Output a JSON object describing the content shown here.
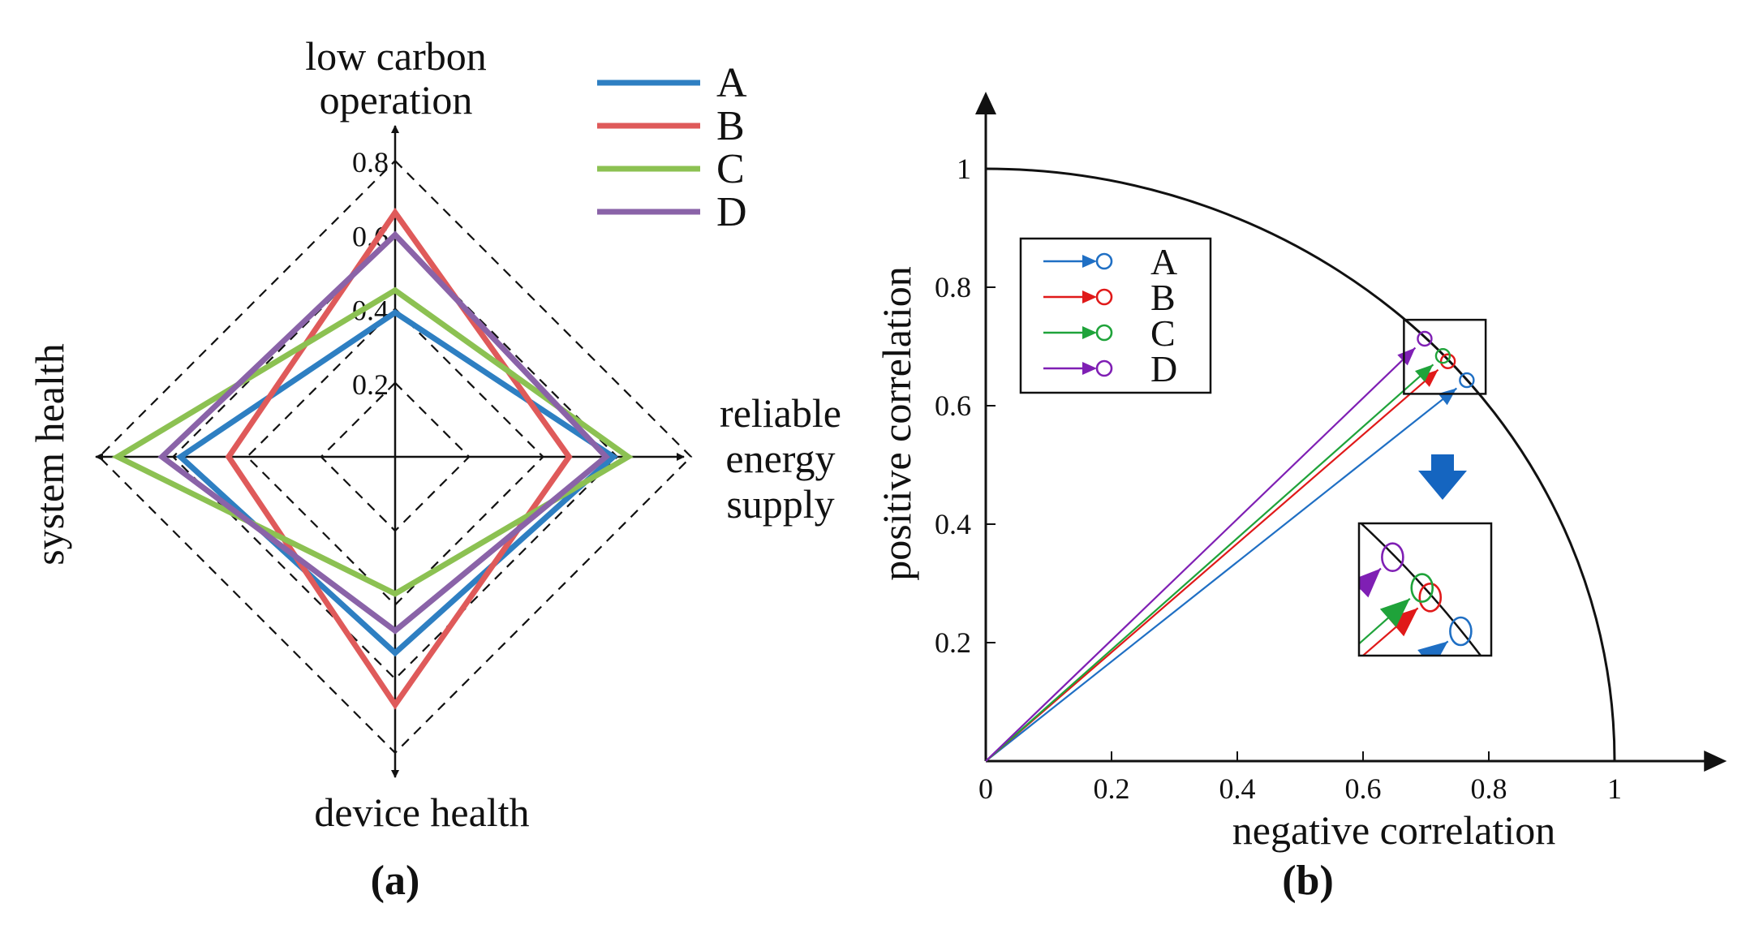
{
  "chart_data": [
    {
      "type": "radar",
      "caption": "(a)",
      "axes": [
        "low carbon operation",
        "reliable energy supply",
        "device health",
        "system health"
      ],
      "axis_label_lines": {
        "top": [
          "low carbon",
          "operation"
        ],
        "right": [
          "reliable",
          "energy",
          "supply"
        ],
        "bottom": [
          "device health"
        ],
        "left": [
          "system health"
        ]
      },
      "rings": [
        0.2,
        0.4,
        0.6,
        0.8
      ],
      "ring_labels": [
        "0.2",
        "0.4",
        "0.6",
        "0.8"
      ],
      "series": [
        {
          "name": "A",
          "color": "#2e7fc2",
          "values": [
            0.39,
            0.59,
            0.53,
            0.58
          ]
        },
        {
          "name": "B",
          "color": "#df5a5a",
          "values": [
            0.66,
            0.47,
            0.67,
            0.45
          ]
        },
        {
          "name": "C",
          "color": "#8cc152",
          "values": [
            0.45,
            0.63,
            0.37,
            0.75
          ]
        },
        {
          "name": "D",
          "color": "#8a63a8",
          "values": [
            0.6,
            0.57,
            0.47,
            0.63
          ]
        }
      ]
    },
    {
      "type": "vector",
      "caption": "(b)",
      "xlabel": "negative correlation",
      "ylabel": "positive correlation",
      "x_ticks": [
        "0",
        "0.2",
        "0.4",
        "0.6",
        "0.8",
        "1"
      ],
      "x_tick_values": [
        0,
        0.2,
        0.4,
        0.6,
        0.8,
        1
      ],
      "y_ticks": [
        "0.2",
        "0.4",
        "0.6",
        "0.8",
        "1"
      ],
      "y_tick_values": [
        0.2,
        0.4,
        0.6,
        0.8,
        1
      ],
      "xlim": [
        0,
        1.15
      ],
      "ylim": [
        0,
        1.1
      ],
      "unit_arc": true,
      "zoom_box": {
        "x": [
          0.665,
          0.795
        ],
        "y": [
          0.62,
          0.745
        ]
      },
      "series": [
        {
          "name": "A",
          "color": "#1f6fc4",
          "x": 0.765,
          "y": 0.643
        },
        {
          "name": "B",
          "color": "#e01919",
          "x": 0.735,
          "y": 0.675
        },
        {
          "name": "C",
          "color": "#1fa33a",
          "x": 0.727,
          "y": 0.684
        },
        {
          "name": "D",
          "color": "#7f1fb4",
          "x": 0.698,
          "y": 0.713
        }
      ]
    }
  ]
}
